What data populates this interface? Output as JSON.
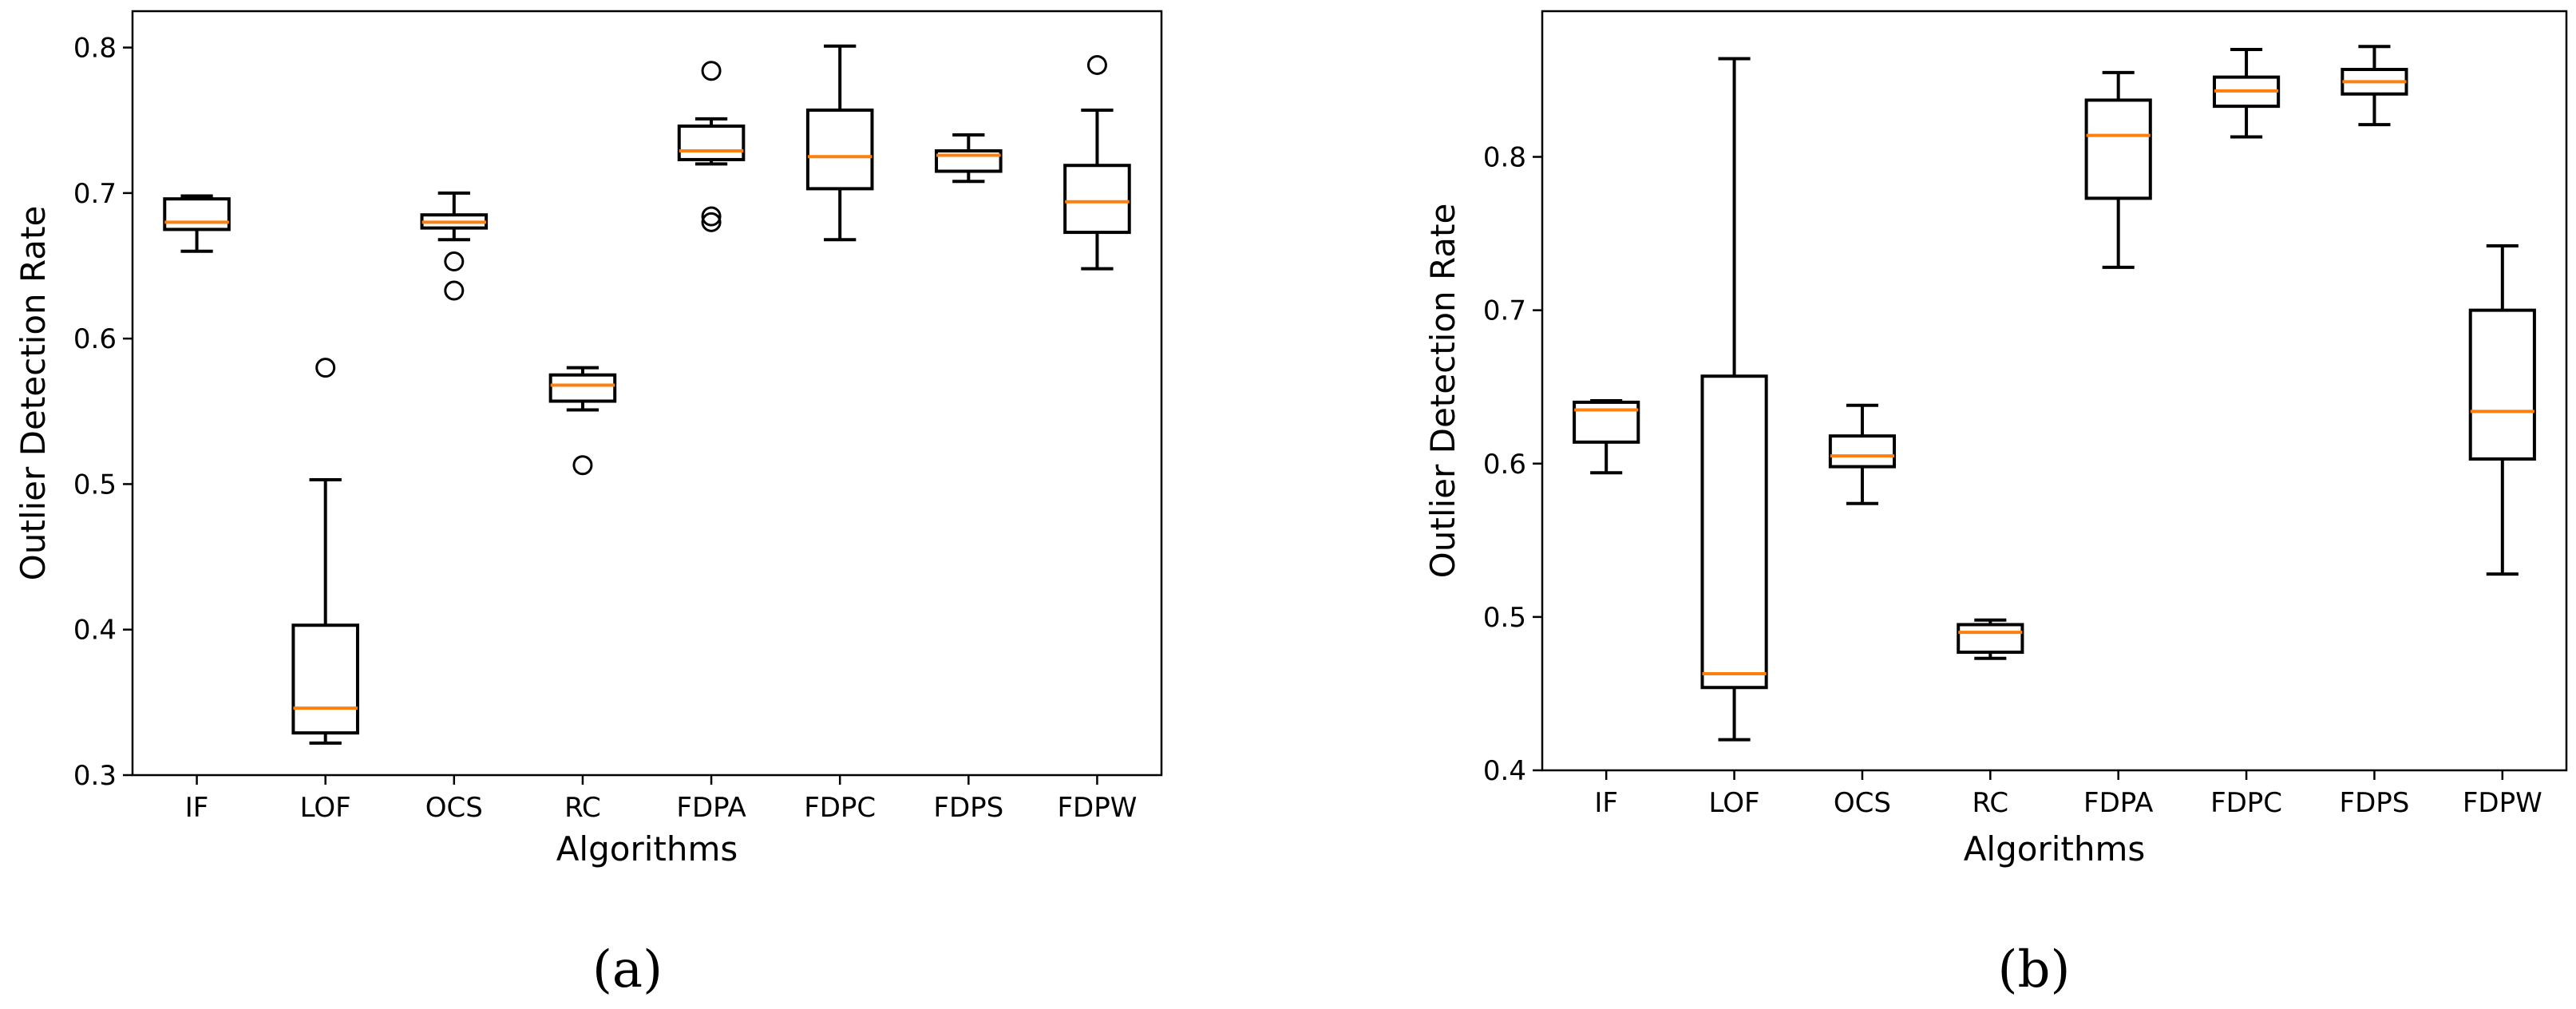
{
  "chart_data": [
    {
      "type": "box",
      "panel_label": "(a)",
      "xlabel": "Algorithms",
      "ylabel": "Outlier Detection Rate",
      "ylim": [
        0.3,
        0.825
      ],
      "yticks": [
        0.3,
        0.4,
        0.5,
        0.6,
        0.7,
        0.8
      ],
      "ytick_labels": [
        "0.3",
        "0.4",
        "0.5",
        "0.6",
        "0.7",
        "0.8"
      ],
      "categories": [
        "IF",
        "LOF",
        "OCS",
        "RC",
        "FDPA",
        "FDPC",
        "FDPS",
        "FDPW"
      ],
      "boxes": [
        {
          "whislo": 0.66,
          "q1": 0.675,
          "med": 0.68,
          "q3": 0.696,
          "whishi": 0.698,
          "fliers": []
        },
        {
          "whislo": 0.322,
          "q1": 0.329,
          "med": 0.346,
          "q3": 0.403,
          "whishi": 0.503,
          "fliers": [
            0.58
          ]
        },
        {
          "whislo": 0.668,
          "q1": 0.676,
          "med": 0.68,
          "q3": 0.685,
          "whishi": 0.7,
          "fliers": [
            0.653,
            0.633
          ]
        },
        {
          "whislo": 0.551,
          "q1": 0.557,
          "med": 0.568,
          "q3": 0.575,
          "whishi": 0.58,
          "fliers": [
            0.513
          ]
        },
        {
          "whislo": 0.72,
          "q1": 0.723,
          "med": 0.729,
          "q3": 0.746,
          "whishi": 0.751,
          "fliers": [
            0.784,
            0.684,
            0.68
          ]
        },
        {
          "whislo": 0.668,
          "q1": 0.703,
          "med": 0.725,
          "q3": 0.757,
          "whishi": 0.801,
          "fliers": []
        },
        {
          "whislo": 0.708,
          "q1": 0.715,
          "med": 0.726,
          "q3": 0.729,
          "whishi": 0.74,
          "fliers": []
        },
        {
          "whislo": 0.648,
          "q1": 0.673,
          "med": 0.694,
          "q3": 0.719,
          "whishi": 0.757,
          "fliers": [
            0.788
          ]
        }
      ]
    },
    {
      "type": "box",
      "panel_label": "(b)",
      "xlabel": "Algorithms",
      "ylabel": "Outlier Detection Rate",
      "ylim": [
        0.4,
        0.895
      ],
      "yticks": [
        0.4,
        0.5,
        0.6,
        0.7,
        0.8
      ],
      "ytick_labels": [
        "0.4",
        "0.5",
        "0.6",
        "0.7",
        "0.8"
      ],
      "categories": [
        "IF",
        "LOF",
        "OCS",
        "RC",
        "FDPA",
        "FDPC",
        "FDPS",
        "FDPW"
      ],
      "boxes": [
        {
          "whislo": 0.594,
          "q1": 0.614,
          "med": 0.635,
          "q3": 0.64,
          "whishi": 0.641,
          "fliers": []
        },
        {
          "whislo": 0.42,
          "q1": 0.454,
          "med": 0.463,
          "q3": 0.657,
          "whishi": 0.864,
          "fliers": []
        },
        {
          "whislo": 0.574,
          "q1": 0.598,
          "med": 0.605,
          "q3": 0.618,
          "whishi": 0.638,
          "fliers": []
        },
        {
          "whislo": 0.473,
          "q1": 0.477,
          "med": 0.49,
          "q3": 0.495,
          "whishi": 0.498,
          "fliers": []
        },
        {
          "whislo": 0.728,
          "q1": 0.773,
          "med": 0.814,
          "q3": 0.837,
          "whishi": 0.855,
          "fliers": []
        },
        {
          "whislo": 0.813,
          "q1": 0.833,
          "med": 0.843,
          "q3": 0.852,
          "whishi": 0.87,
          "fliers": []
        },
        {
          "whislo": 0.821,
          "q1": 0.841,
          "med": 0.849,
          "q3": 0.857,
          "whishi": 0.872,
          "fliers": []
        },
        {
          "whislo": 0.528,
          "q1": 0.603,
          "med": 0.634,
          "q3": 0.7,
          "whishi": 0.742,
          "fliers": []
        }
      ]
    }
  ],
  "colors": {
    "median": "#ff7f0e",
    "box": "#000000",
    "background": "#ffffff"
  }
}
